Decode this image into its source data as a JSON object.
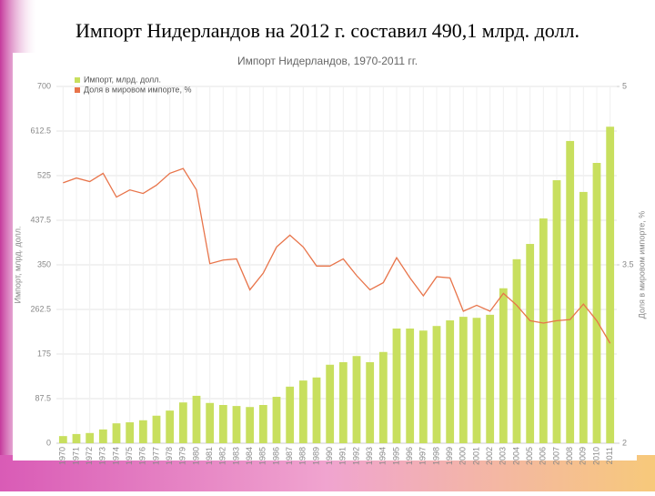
{
  "slide_title": "Импорт Нидерландов на 2012 г. составил 490,1 млрд. долл.",
  "chart_data": {
    "type": "bar-line",
    "title": "Импорт Нидерландов, 1970-2011 гг.",
    "y_label": "Импорт, млрд. долл.",
    "y2_label": "Доля в мировом импорте, %",
    "categories": [
      "1970",
      "1971",
      "1972",
      "1973",
      "1974",
      "1975",
      "1976",
      "1977",
      "1978",
      "1979",
      "1980",
      "1981",
      "1982",
      "1983",
      "1984",
      "1985",
      "1986",
      "1987",
      "1988",
      "1989",
      "1990",
      "1991",
      "1992",
      "1993",
      "1994",
      "1995",
      "1996",
      "1997",
      "1998",
      "1999",
      "2000",
      "2001",
      "2002",
      "2003",
      "2004",
      "2005",
      "2006",
      "2007",
      "2008",
      "2009",
      "2010",
      "2011"
    ],
    "series": [
      {
        "name": "Импорт, млрд. долл.",
        "color": "#c8df5e",
        "kind": "bar",
        "values": [
          14,
          18,
          20,
          27,
          39,
          41,
          45,
          54,
          64,
          80,
          93,
          79,
          75,
          73,
          71,
          75,
          91,
          111,
          123,
          129,
          154,
          159,
          171,
          159,
          179,
          225,
          225,
          221,
          230,
          241,
          248,
          246,
          252,
          304,
          361,
          391,
          441,
          516,
          593,
          493,
          550,
          621
        ]
      },
      {
        "name": "Доля в мировом импорте, %",
        "color": "#e8744a",
        "kind": "line",
        "axis": "y2",
        "values": [
          4.19,
          4.23,
          4.2,
          4.27,
          4.07,
          4.13,
          4.1,
          4.17,
          4.27,
          4.31,
          4.13,
          3.51,
          3.54,
          3.55,
          3.29,
          3.43,
          3.65,
          3.75,
          3.65,
          3.49,
          3.49,
          3.55,
          3.41,
          3.29,
          3.35,
          3.56,
          3.39,
          3.24,
          3.4,
          3.39,
          3.11,
          3.16,
          3.11,
          3.26,
          3.16,
          3.03,
          3.01,
          3.03,
          3.04,
          3.17,
          3.03,
          2.84
        ]
      }
    ],
    "ylim": [
      0,
      700
    ],
    "yticks": [
      0,
      87.5,
      175,
      262.5,
      350,
      437.5,
      525,
      612.5,
      700
    ],
    "y2lim": [
      2,
      5
    ],
    "y2ticks": [
      2,
      3.5,
      5
    ],
    "grid": true,
    "legend": "top-left"
  }
}
